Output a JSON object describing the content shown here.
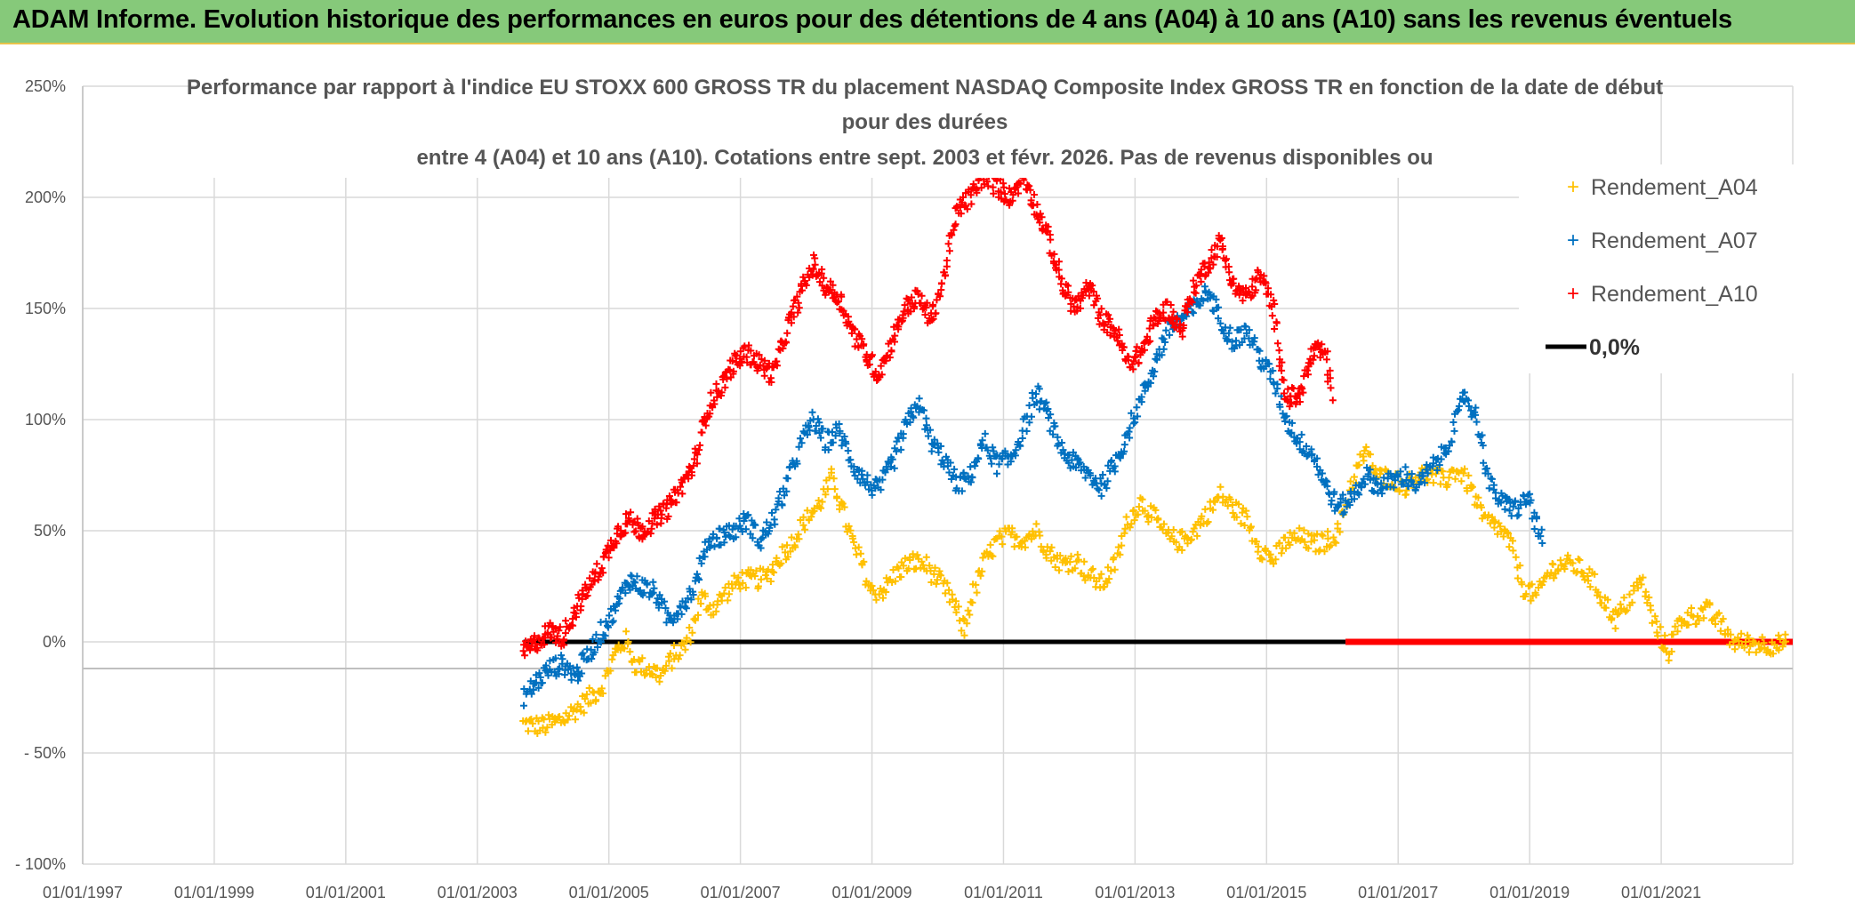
{
  "header": {
    "title": "ADAM Informe. Evolution historique des performances en euros pour des détentions de 4 ans (A04) à 10 ans (A10) sans les revenus éventuels"
  },
  "chart_data": {
    "type": "scatter",
    "title_lines": [
      "Performance  par rapport à l'indice EU STOXX 600 GROSS TR  du placement NASDAQ Composite Index GROSS TR en fonction de la date de début",
      "pour des durées",
      "entre 4 (A04) et 10 ans (A10). Cotations entre sept. 2003 et févr. 2026. Pas de revenus disponibles ou"
    ],
    "x_ticks": [
      "01/01/1997",
      "01/01/1999",
      "01/01/2001",
      "01/01/2003",
      "01/01/2005",
      "01/01/2007",
      "01/01/2009",
      "01/01/2011",
      "01/01/2013",
      "01/01/2015",
      "01/01/2017",
      "01/01/2019",
      "01/01/2021"
    ],
    "y_ticks": [
      "250%",
      "200%",
      "150%",
      "100%",
      "50%",
      "0%",
      "- 50%",
      "- 100%"
    ],
    "xlim": [
      1997.0,
      2023.0
    ],
    "ylim": [
      -100,
      250
    ],
    "marker_color_zero": "#000000",
    "series": [
      {
        "name": "Rendement_A04",
        "color": "#ffc000",
        "marker": "+",
        "points": [
          [
            2003.7,
            -37
          ],
          [
            2004.0,
            -38
          ],
          [
            2004.3,
            -35
          ],
          [
            2004.6,
            -28
          ],
          [
            2004.9,
            -20
          ],
          [
            2005.1,
            -5
          ],
          [
            2005.25,
            1
          ],
          [
            2005.4,
            -10
          ],
          [
            2005.6,
            -12
          ],
          [
            2005.8,
            -15
          ],
          [
            2006.0,
            -6
          ],
          [
            2006.15,
            -2
          ],
          [
            2006.25,
            5
          ],
          [
            2006.4,
            20
          ],
          [
            2006.6,
            15
          ],
          [
            2006.8,
            23
          ],
          [
            2007.0,
            28
          ],
          [
            2007.2,
            28
          ],
          [
            2007.4,
            29
          ],
          [
            2007.6,
            38
          ],
          [
            2007.8,
            45
          ],
          [
            2008.0,
            55
          ],
          [
            2008.2,
            62
          ],
          [
            2008.4,
            74
          ],
          [
            2008.55,
            60
          ],
          [
            2008.7,
            45
          ],
          [
            2008.85,
            35
          ],
          [
            2009.0,
            22
          ],
          [
            2009.2,
            24
          ],
          [
            2009.4,
            32
          ],
          [
            2009.6,
            36
          ],
          [
            2009.8,
            35
          ],
          [
            2010.0,
            28
          ],
          [
            2010.2,
            20
          ],
          [
            2010.4,
            5
          ],
          [
            2010.5,
            18
          ],
          [
            2010.7,
            35
          ],
          [
            2010.9,
            45
          ],
          [
            2011.1,
            48
          ],
          [
            2011.3,
            46
          ],
          [
            2011.5,
            50
          ],
          [
            2011.7,
            40
          ],
          [
            2011.9,
            35
          ],
          [
            2012.1,
            37
          ],
          [
            2012.3,
            30
          ],
          [
            2012.5,
            26
          ],
          [
            2012.7,
            35
          ],
          [
            2012.9,
            55
          ],
          [
            2013.1,
            63
          ],
          [
            2013.3,
            55
          ],
          [
            2013.5,
            47
          ],
          [
            2013.7,
            45
          ],
          [
            2013.9,
            50
          ],
          [
            2014.1,
            58
          ],
          [
            2014.3,
            66
          ],
          [
            2014.5,
            60
          ],
          [
            2014.7,
            55
          ],
          [
            2014.9,
            42
          ],
          [
            2015.1,
            37
          ],
          [
            2015.3,
            45
          ],
          [
            2015.5,
            47
          ],
          [
            2015.7,
            44
          ],
          [
            2015.9,
            45
          ],
          [
            2016.1,
            50
          ],
          [
            2016.3,
            72
          ],
          [
            2016.5,
            85
          ],
          [
            2016.7,
            74
          ],
          [
            2016.9,
            74
          ],
          [
            2017.1,
            70
          ],
          [
            2017.3,
            75
          ],
          [
            2017.5,
            75
          ],
          [
            2017.7,
            72
          ],
          [
            2017.9,
            78
          ],
          [
            2018.1,
            70
          ],
          [
            2018.3,
            55
          ],
          [
            2018.5,
            52
          ],
          [
            2018.7,
            45
          ],
          [
            2018.9,
            25
          ],
          [
            2019.1,
            20
          ],
          [
            2019.3,
            32
          ],
          [
            2019.5,
            35
          ],
          [
            2019.7,
            34
          ],
          [
            2019.9,
            30
          ],
          [
            2020.1,
            20
          ],
          [
            2020.3,
            10
          ],
          [
            2020.5,
            18
          ],
          [
            2020.7,
            28
          ],
          [
            2020.9,
            8
          ],
          [
            2021.1,
            -5
          ],
          [
            2021.3,
            10
          ],
          [
            2021.5,
            12
          ],
          [
            2021.7,
            14
          ],
          [
            2021.9,
            8
          ],
          [
            2022.1,
            0
          ],
          [
            2022.5,
            -1
          ],
          [
            2022.9,
            -1
          ]
        ]
      },
      {
        "name": "Rendement_A07",
        "color": "#0070c0",
        "marker": "+",
        "points": [
          [
            2003.7,
            -25
          ],
          [
            2003.9,
            -18
          ],
          [
            2004.1,
            -12
          ],
          [
            2004.3,
            -10
          ],
          [
            2004.5,
            -15
          ],
          [
            2004.7,
            -5
          ],
          [
            2004.9,
            5
          ],
          [
            2005.1,
            15
          ],
          [
            2005.3,
            28
          ],
          [
            2005.5,
            25
          ],
          [
            2005.7,
            22
          ],
          [
            2005.9,
            10
          ],
          [
            2006.1,
            16
          ],
          [
            2006.3,
            25
          ],
          [
            2006.5,
            45
          ],
          [
            2006.7,
            48
          ],
          [
            2006.9,
            50
          ],
          [
            2007.1,
            55
          ],
          [
            2007.3,
            45
          ],
          [
            2007.5,
            55
          ],
          [
            2007.7,
            70
          ],
          [
            2007.9,
            88
          ],
          [
            2008.1,
            100
          ],
          [
            2008.3,
            90
          ],
          [
            2008.5,
            95
          ],
          [
            2008.7,
            80
          ],
          [
            2008.9,
            72
          ],
          [
            2009.1,
            68
          ],
          [
            2009.3,
            80
          ],
          [
            2009.5,
            95
          ],
          [
            2009.7,
            108
          ],
          [
            2009.9,
            90
          ],
          [
            2010.1,
            82
          ],
          [
            2010.3,
            70
          ],
          [
            2010.5,
            75
          ],
          [
            2010.7,
            90
          ],
          [
            2010.9,
            80
          ],
          [
            2011.1,
            82
          ],
          [
            2011.3,
            95
          ],
          [
            2011.5,
            112
          ],
          [
            2011.7,
            100
          ],
          [
            2011.9,
            85
          ],
          [
            2012.1,
            80
          ],
          [
            2012.3,
            75
          ],
          [
            2012.5,
            70
          ],
          [
            2012.7,
            80
          ],
          [
            2012.9,
            95
          ],
          [
            2013.1,
            110
          ],
          [
            2013.3,
            125
          ],
          [
            2013.5,
            140
          ],
          [
            2013.7,
            145
          ],
          [
            2013.9,
            150
          ],
          [
            2014.1,
            158
          ],
          [
            2014.3,
            145
          ],
          [
            2014.5,
            135
          ],
          [
            2014.7,
            140
          ],
          [
            2014.9,
            128
          ],
          [
            2015.1,
            118
          ],
          [
            2015.3,
            100
          ],
          [
            2015.5,
            90
          ],
          [
            2015.7,
            85
          ],
          [
            2015.9,
            70
          ],
          [
            2016.1,
            60
          ],
          [
            2016.3,
            65
          ],
          [
            2016.5,
            75
          ],
          [
            2016.7,
            70
          ],
          [
            2016.9,
            72
          ],
          [
            2017.1,
            75
          ],
          [
            2017.3,
            70
          ],
          [
            2017.5,
            78
          ],
          [
            2017.7,
            85
          ],
          [
            2017.9,
            100
          ],
          [
            2018.0,
            112
          ],
          [
            2018.2,
            100
          ],
          [
            2018.4,
            70
          ],
          [
            2018.6,
            62
          ],
          [
            2018.8,
            60
          ],
          [
            2019.0,
            65
          ],
          [
            2019.1,
            52
          ],
          [
            2019.2,
            45
          ]
        ]
      },
      {
        "name": "Rendement_A10",
        "color": "#ff0000",
        "marker": "+",
        "points": [
          [
            2003.7,
            -5
          ],
          [
            2003.9,
            0
          ],
          [
            2004.1,
            5
          ],
          [
            2004.3,
            2
          ],
          [
            2004.5,
            15
          ],
          [
            2004.7,
            25
          ],
          [
            2004.9,
            35
          ],
          [
            2005.1,
            48
          ],
          [
            2005.3,
            55
          ],
          [
            2005.5,
            50
          ],
          [
            2005.7,
            55
          ],
          [
            2005.9,
            60
          ],
          [
            2006.1,
            70
          ],
          [
            2006.3,
            80
          ],
          [
            2006.5,
            105
          ],
          [
            2006.7,
            115
          ],
          [
            2006.9,
            125
          ],
          [
            2007.1,
            130
          ],
          [
            2007.3,
            125
          ],
          [
            2007.5,
            120
          ],
          [
            2007.7,
            140
          ],
          [
            2007.9,
            155
          ],
          [
            2008.1,
            170
          ],
          [
            2008.3,
            160
          ],
          [
            2008.5,
            155
          ],
          [
            2008.7,
            140
          ],
          [
            2008.9,
            130
          ],
          [
            2009.1,
            120
          ],
          [
            2009.3,
            135
          ],
          [
            2009.5,
            150
          ],
          [
            2009.7,
            155
          ],
          [
            2009.9,
            145
          ],
          [
            2010.1,
            165
          ],
          [
            2010.3,
            195
          ],
          [
            2010.5,
            200
          ],
          [
            2010.7,
            210
          ],
          [
            2010.9,
            205
          ],
          [
            2011.1,
            200
          ],
          [
            2011.3,
            210
          ],
          [
            2011.5,
            195
          ],
          [
            2011.7,
            180
          ],
          [
            2011.9,
            160
          ],
          [
            2012.1,
            150
          ],
          [
            2012.3,
            160
          ],
          [
            2012.5,
            145
          ],
          [
            2012.7,
            140
          ],
          [
            2012.9,
            125
          ],
          [
            2013.1,
            130
          ],
          [
            2013.3,
            145
          ],
          [
            2013.5,
            150
          ],
          [
            2013.7,
            140
          ],
          [
            2013.9,
            160
          ],
          [
            2014.1,
            170
          ],
          [
            2014.3,
            180
          ],
          [
            2014.5,
            160
          ],
          [
            2014.7,
            155
          ],
          [
            2014.9,
            165
          ],
          [
            2015.1,
            150
          ],
          [
            2015.3,
            110
          ],
          [
            2015.5,
            110
          ],
          [
            2015.7,
            130
          ],
          [
            2015.9,
            130
          ],
          [
            2016.0,
            110
          ]
        ]
      }
    ],
    "reference_lines": [
      {
        "name": "0,0%",
        "value": 0,
        "color": "#000000"
      }
    ]
  },
  "legend": [
    {
      "label": "Rendement_A04",
      "color": "#ffc000"
    },
    {
      "label": "Rendement_A07",
      "color": "#0070c0"
    },
    {
      "label": "Rendement_A10",
      "color": "#ff0000"
    },
    {
      "label": "0,0%",
      "color": "#000000"
    }
  ]
}
